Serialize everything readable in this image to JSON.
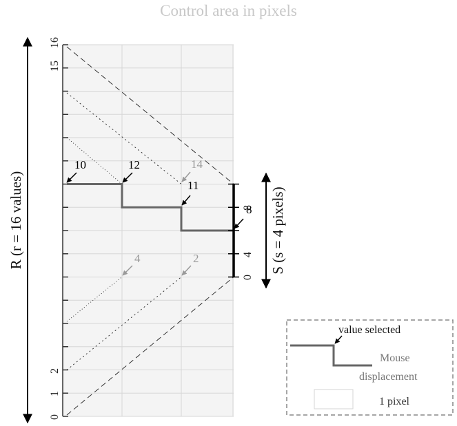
{
  "title": "Control area in pixels",
  "axis_r_label": "R (r = 16 values)",
  "axis_s_label": "S (s = 4 pixels)",
  "r_ticks": [
    "0",
    "1",
    "2",
    "15",
    "16"
  ],
  "s_ticks": [
    "0",
    "4",
    "8"
  ],
  "values": {
    "v10": "10",
    "v12": "12",
    "v14": "14",
    "v11": "11",
    "v8": "8",
    "v4": "4",
    "v2": "2"
  },
  "legend": {
    "value_selected": "value selected",
    "mouse_displacement": "Mouse displacement",
    "mouse_line1": "Mouse",
    "mouse_line2": "displacement",
    "one_pixel": "1 pixel"
  },
  "colors": {
    "grid": "#d8d8d8",
    "area_bg": "#f4f4f4",
    "path": "#666666",
    "text_grey": "#999999"
  }
}
